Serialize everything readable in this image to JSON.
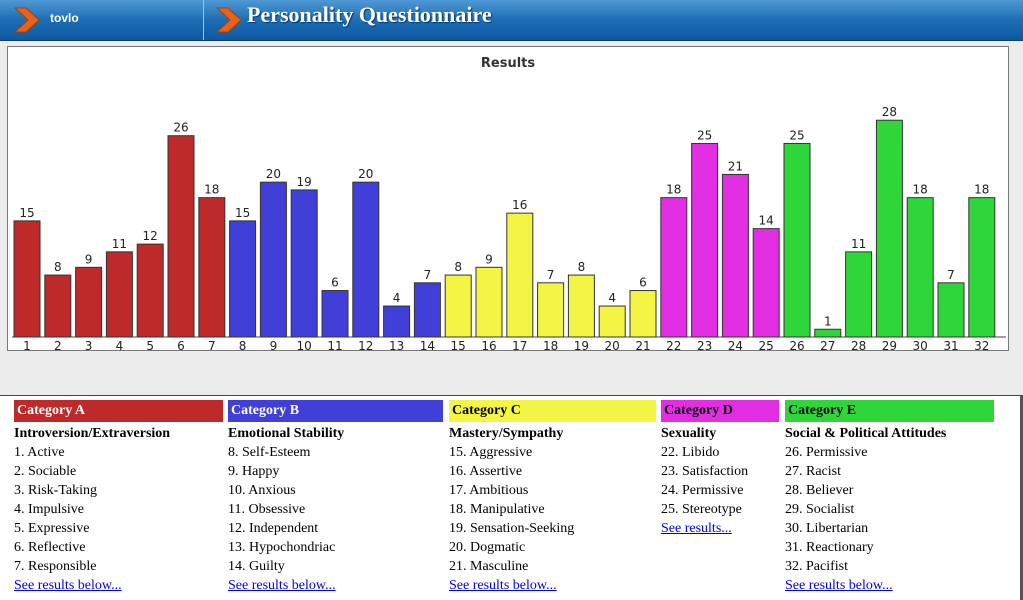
{
  "header": {
    "app_name": "tovlo",
    "title": "Personality Questionnaire",
    "icon": "chevron-right-icon"
  },
  "chart_data": {
    "type": "bar",
    "title": "Results",
    "xlabel": "",
    "ylabel": "",
    "categories": [
      "1",
      "2",
      "3",
      "4",
      "5",
      "6",
      "7",
      "8",
      "9",
      "10",
      "11",
      "12",
      "13",
      "14",
      "15",
      "16",
      "17",
      "18",
      "19",
      "20",
      "21",
      "22",
      "23",
      "24",
      "25",
      "26",
      "27",
      "28",
      "29",
      "30",
      "31",
      "32"
    ],
    "values": [
      15,
      8,
      9,
      11,
      12,
      26,
      18,
      15,
      20,
      19,
      6,
      20,
      4,
      7,
      8,
      9,
      16,
      7,
      8,
      4,
      6,
      18,
      25,
      21,
      14,
      25,
      1,
      11,
      28,
      18,
      7,
      18
    ],
    "ylim": [
      0,
      31
    ],
    "grid": false,
    "bar_colors": [
      "#be2a2a",
      "#be2a2a",
      "#be2a2a",
      "#be2a2a",
      "#be2a2a",
      "#be2a2a",
      "#be2a2a",
      "#4040d8",
      "#4040d8",
      "#4040d8",
      "#4040d8",
      "#4040d8",
      "#4040d8",
      "#4040d8",
      "#f4f444",
      "#f4f444",
      "#f4f444",
      "#f4f444",
      "#f4f444",
      "#f4f444",
      "#f4f444",
      "#e22ee2",
      "#e22ee2",
      "#e22ee2",
      "#e22ee2",
      "#2fd63a",
      "#2fd63a",
      "#2fd63a",
      "#2fd63a",
      "#2fd63a",
      "#2fd63a",
      "#2fd63a"
    ]
  },
  "categories": [
    {
      "header": "Category A",
      "color": "#be2a2a",
      "text_color": "#ffffff",
      "subtitle": "Introversion/Extraversion",
      "items": [
        "1. Active",
        "2. Sociable",
        "3. Risk-Taking",
        "4. Impulsive",
        "5. Expressive",
        "6. Reflective",
        "7. Responsible"
      ],
      "link": "See results below..."
    },
    {
      "header": "Category B",
      "color": "#4040d8",
      "text_color": "#ffffff",
      "subtitle": "Emotional Stability",
      "items": [
        "8. Self-Esteem",
        "9. Happy",
        "10. Anxious",
        "11. Obsessive",
        "12. Independent",
        "13. Hypochondriac",
        "14. Guilty"
      ],
      "link": "See results below..."
    },
    {
      "header": "Category C",
      "color": "#f4f444",
      "text_color": "#000000",
      "subtitle": "Mastery/Sympathy",
      "items": [
        "15. Aggressive",
        "16. Assertive",
        "17. Ambitious",
        "18. Manipulative",
        "19. Sensation-Seeking",
        "20. Dogmatic",
        "21. Masculine"
      ],
      "link": "See results below..."
    },
    {
      "header": "Category D",
      "color": "#e22ee2",
      "text_color": "#000000",
      "subtitle": "Sexuality",
      "items": [
        "22. Libido",
        "23. Satisfaction",
        "24. Permissive",
        "25. Stereotype"
      ],
      "link": "See results..."
    },
    {
      "header": "Category E",
      "color": "#2fd63a",
      "text_color": "#000000",
      "subtitle": "Social & Political Attitudes",
      "items": [
        "26. Permissive",
        "27. Racist",
        "28. Believer",
        "29. Socialist",
        "30. Libertarian",
        "31. Reactionary",
        "32. Pacifist"
      ],
      "link": "See results below..."
    }
  ]
}
